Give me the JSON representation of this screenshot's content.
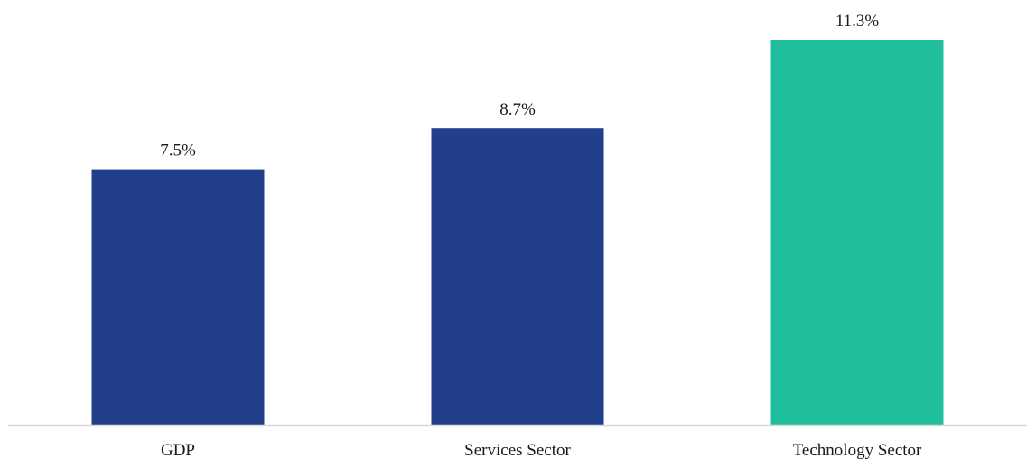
{
  "chart_data": {
    "type": "bar",
    "categories": [
      "GDP",
      "Services Sector",
      "Technology Sector"
    ],
    "values": [
      7.5,
      8.7,
      11.3
    ],
    "value_labels": [
      "7.5%",
      "8.7%",
      "11.3%"
    ],
    "bar_colors": [
      "#223F8C",
      "#223F8C",
      "#21BE9E"
    ],
    "axis_color": "#D9D9D9",
    "ylim": [
      0,
      12
    ],
    "grid": false,
    "legend": "none"
  }
}
